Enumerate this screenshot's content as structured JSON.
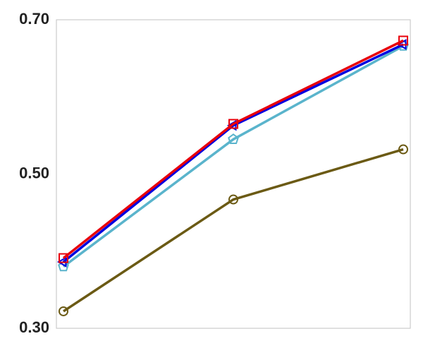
{
  "chart_data": {
    "type": "line",
    "categories": [
      null,
      null,
      null
    ],
    "series": [
      {
        "color": "#6b5a14",
        "marker": "circle",
        "values": [
          0.322,
          0.467,
          0.532
        ]
      },
      {
        "color": "#5ab4cc",
        "marker": "pentagon",
        "values": [
          0.38,
          0.545,
          0.666
        ]
      },
      {
        "color": "#0000e0",
        "marker": "triangle",
        "values": [
          0.386,
          0.563,
          0.668
        ]
      },
      {
        "color": "#e8000b",
        "marker": "square",
        "values": [
          0.391,
          0.565,
          0.673
        ]
      }
    ],
    "ylim": [
      0.3,
      0.7
    ],
    "yticks": [
      {
        "value": 0.3,
        "label": "0.30"
      },
      {
        "value": 0.5,
        "label": "0.50"
      },
      {
        "value": 0.7,
        "label": "0.70"
      }
    ],
    "grid": false
  }
}
